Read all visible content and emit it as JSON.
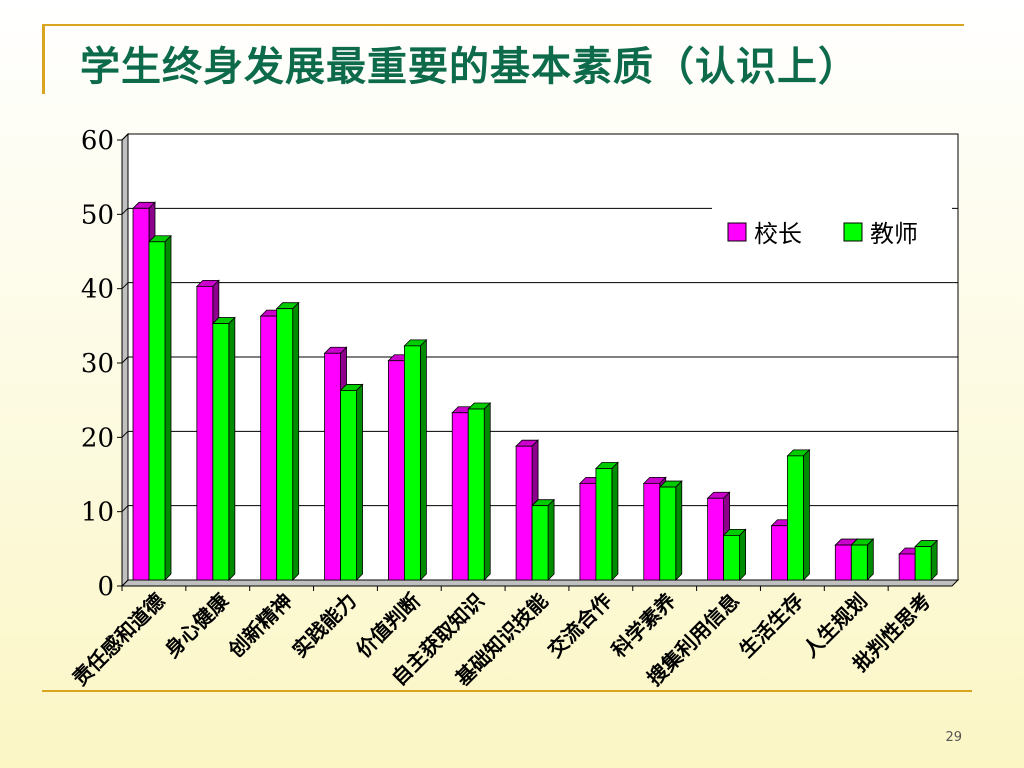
{
  "slide": {
    "title": "学生终身发展最重要的基本素质（认识上）",
    "page_number": "29"
  },
  "chart_data": {
    "type": "bar",
    "title": "学生终身发展最重要的基本素质（认识上）",
    "xlabel": "",
    "ylabel": "",
    "ylim": [
      0,
      60
    ],
    "yticks": [
      0,
      10,
      20,
      30,
      40,
      50,
      60
    ],
    "grid": true,
    "legend": "top-right",
    "categories": [
      "责任感和道德",
      "身心健康",
      "创新精神",
      "实践能力",
      "价值判断",
      "自主获取知识",
      "基础知识技能",
      "交流合作",
      "科学素养",
      "搜集利用信息",
      "生活生存",
      "人生规划",
      "批判性思考"
    ],
    "series": [
      {
        "name": "校长",
        "color": "#ff00ff",
        "values": [
          50,
          39.5,
          35.5,
          30.5,
          29.5,
          22.5,
          18,
          13,
          13,
          11,
          7.3,
          4.7,
          3.5
        ]
      },
      {
        "name": "教师",
        "color": "#00ff00",
        "values": [
          45.5,
          34.5,
          36.5,
          25.5,
          31.5,
          23,
          10,
          15,
          12.5,
          6,
          16.7,
          4.7,
          4.5
        ]
      }
    ]
  }
}
